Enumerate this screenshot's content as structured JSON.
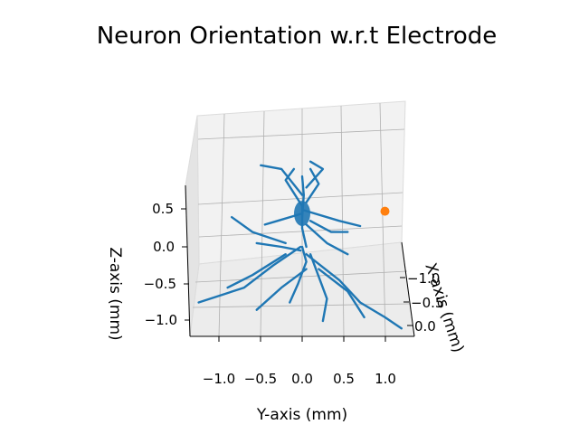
{
  "chart_data": {
    "type": "scatter",
    "projection": "3d",
    "title": "Neuron Orientation w.r.t Electrode",
    "xlabel": "X-axis (mm)",
    "ylabel": "Y-axis (mm)",
    "zlabel": "Z-axis (mm)",
    "x_ticks": [
      "−1.0",
      "−0.5",
      "0.0"
    ],
    "y_ticks": [
      "−1.0",
      "−0.5",
      "0.0",
      "0.5",
      "1.0"
    ],
    "z_ticks": [
      "0.5",
      "0.0",
      "−0.5",
      "−1.0"
    ],
    "y_range": [
      -1.35,
      1.25
    ],
    "z_range": [
      -1.3,
      0.75
    ],
    "grid": true,
    "colors": {
      "neuron": "#1f77b4",
      "electrode": "#ff7f0e",
      "pane": "#f2f2f2",
      "grid": "#b0b0b0"
    },
    "series": [
      {
        "kind": "neuron-branches",
        "points_note_units": "y, z in mm (screen-projected)",
        "branches": [
          [
            [
              -0.02,
              0.0
            ],
            [
              -0.35,
              -0.25
            ],
            [
              -0.7,
              -0.55
            ],
            [
              -1.25,
              -0.75
            ]
          ],
          [
            [
              -0.2,
              -0.1
            ],
            [
              -0.6,
              -0.38
            ],
            [
              -0.9,
              -0.55
            ]
          ],
          [
            [
              -0.02,
              -0.05
            ],
            [
              -0.25,
              0.0
            ],
            [
              -0.55,
              0.05
            ]
          ],
          [
            [
              -0.2,
              0.05
            ],
            [
              -0.6,
              0.2
            ],
            [
              -0.85,
              0.4
            ]
          ],
          [
            [
              0.0,
              0.0
            ],
            [
              0.05,
              -0.2
            ],
            [
              -0.05,
              -0.5
            ],
            [
              -0.15,
              -0.75
            ]
          ],
          [
            [
              0.05,
              -0.3
            ],
            [
              -0.25,
              -0.55
            ],
            [
              -0.55,
              -0.85
            ]
          ],
          [
            [
              0.05,
              -0.1
            ],
            [
              0.45,
              -0.45
            ],
            [
              0.7,
              -0.75
            ],
            [
              1.0,
              -0.95
            ],
            [
              1.2,
              -1.1
            ]
          ],
          [
            [
              0.2,
              -0.3
            ],
            [
              0.55,
              -0.6
            ],
            [
              0.75,
              -0.95
            ]
          ],
          [
            [
              0.1,
              -0.1
            ],
            [
              0.3,
              -0.7
            ],
            [
              0.25,
              -1.0
            ]
          ],
          [
            [
              0.0,
              0.4
            ],
            [
              0.02,
              0.7
            ],
            [
              0.0,
              0.95
            ]
          ],
          [
            [
              0.0,
              0.7
            ],
            [
              -0.25,
              1.05
            ],
            [
              -0.5,
              1.1
            ]
          ],
          [
            [
              0.0,
              0.55
            ],
            [
              -0.2,
              0.9
            ],
            [
              -0.1,
              1.05
            ]
          ],
          [
            [
              0.05,
              0.6
            ],
            [
              0.2,
              0.85
            ],
            [
              0.1,
              1.05
            ]
          ],
          [
            [
              0.05,
              0.8
            ],
            [
              0.25,
              1.05
            ],
            [
              0.1,
              1.15
            ]
          ],
          [
            [
              0.0,
              0.5
            ],
            [
              0.45,
              0.35
            ],
            [
              0.7,
              0.28
            ]
          ],
          [
            [
              0.1,
              0.35
            ],
            [
              0.35,
              0.2
            ],
            [
              0.55,
              0.2
            ]
          ],
          [
            [
              0.0,
              0.45
            ],
            [
              -0.3,
              0.35
            ],
            [
              -0.45,
              0.3
            ]
          ],
          [
            [
              0.05,
              0.3
            ],
            [
              0.3,
              0.05
            ],
            [
              0.55,
              -0.1
            ]
          ],
          [
            [
              0.0,
              0.55
            ],
            [
              0.0,
              0.25
            ],
            [
              0.05,
              0.0
            ]
          ]
        ]
      },
      {
        "kind": "electrode",
        "y": 1.0,
        "z": 0.48
      }
    ]
  }
}
